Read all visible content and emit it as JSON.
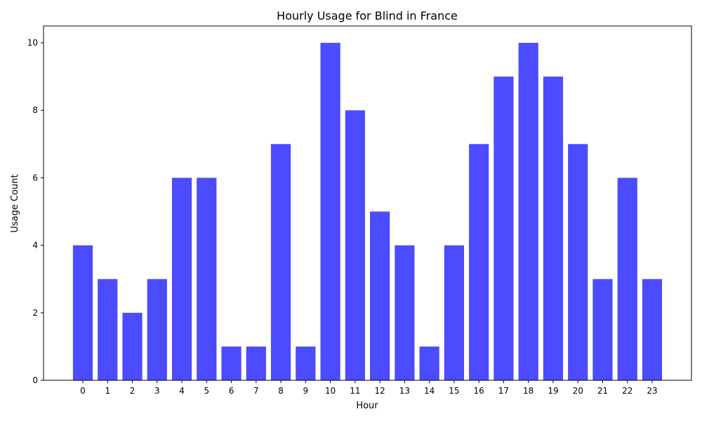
{
  "chart_data": {
    "type": "bar",
    "title": "Hourly Usage for Blind in France",
    "xlabel": "Hour",
    "ylabel": "Usage Count",
    "categories": [
      "0",
      "1",
      "2",
      "3",
      "4",
      "5",
      "6",
      "7",
      "8",
      "9",
      "10",
      "11",
      "12",
      "13",
      "14",
      "15",
      "16",
      "17",
      "18",
      "19",
      "20",
      "21",
      "22",
      "23"
    ],
    "values": [
      4,
      3,
      2,
      3,
      6,
      6,
      1,
      1,
      7,
      1,
      10,
      8,
      5,
      4,
      1,
      4,
      7,
      9,
      10,
      9,
      7,
      3,
      6,
      3
    ],
    "ylim": [
      0,
      10.5
    ],
    "yticks": [
      0,
      2,
      4,
      6,
      8,
      10
    ],
    "grid": false,
    "bar_color": "#4b4bff"
  }
}
